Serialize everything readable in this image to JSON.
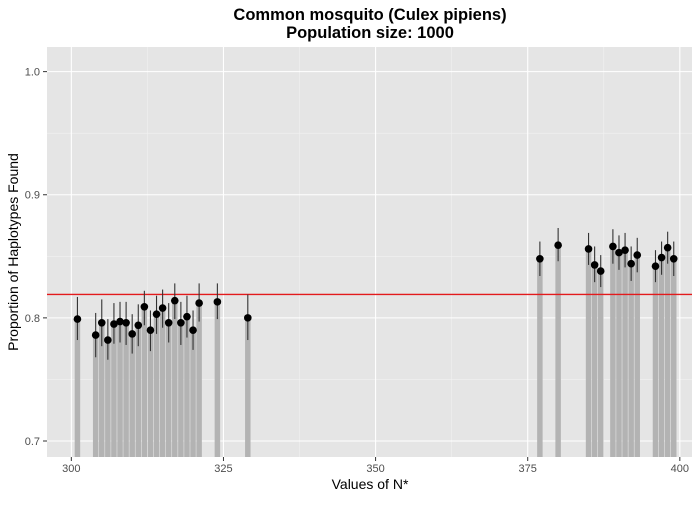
{
  "chart_data": {
    "type": "bar",
    "title": "Common mosquito (Culex pipiens)",
    "subtitle": "Population size: 1000",
    "xlabel": "Values of N*",
    "ylabel": "Proportion of Haplotypes Found",
    "xlim": [
      296,
      402
    ],
    "ylim": [
      0.687,
      1.02
    ],
    "xticks": [
      300,
      325,
      350,
      375,
      400
    ],
    "yticks": [
      0.7,
      0.8,
      0.9,
      1.0
    ],
    "ytick_labels": [
      "0.7",
      "0.8",
      "0.9",
      "1.0"
    ],
    "grid": true,
    "reference_line": {
      "y": 0.819,
      "color": "#e31a1c"
    },
    "colors": {
      "panel": "#e5e5e5",
      "grid_major": "#ffffff",
      "bar": "#b3b3b3",
      "point": "#000000",
      "errorbar": "#333333"
    },
    "points": [
      {
        "x": 301,
        "y": 0.799,
        "lo": 0.782,
        "hi": 0.817
      },
      {
        "x": 304,
        "y": 0.786,
        "lo": 0.768,
        "hi": 0.804
      },
      {
        "x": 305,
        "y": 0.796,
        "lo": 0.777,
        "hi": 0.815
      },
      {
        "x": 306,
        "y": 0.782,
        "lo": 0.766,
        "hi": 0.799
      },
      {
        "x": 307,
        "y": 0.795,
        "lo": 0.779,
        "hi": 0.812
      },
      {
        "x": 308,
        "y": 0.797,
        "lo": 0.78,
        "hi": 0.813
      },
      {
        "x": 309,
        "y": 0.796,
        "lo": 0.778,
        "hi": 0.813
      },
      {
        "x": 310,
        "y": 0.787,
        "lo": 0.771,
        "hi": 0.803
      },
      {
        "x": 311,
        "y": 0.794,
        "lo": 0.777,
        "hi": 0.811
      },
      {
        "x": 312,
        "y": 0.809,
        "lo": 0.794,
        "hi": 0.822
      },
      {
        "x": 313,
        "y": 0.79,
        "lo": 0.773,
        "hi": 0.806
      },
      {
        "x": 314,
        "y": 0.803,
        "lo": 0.787,
        "hi": 0.818
      },
      {
        "x": 315,
        "y": 0.808,
        "lo": 0.792,
        "hi": 0.823
      },
      {
        "x": 316,
        "y": 0.796,
        "lo": 0.78,
        "hi": 0.812
      },
      {
        "x": 317,
        "y": 0.814,
        "lo": 0.799,
        "hi": 0.828
      },
      {
        "x": 318,
        "y": 0.796,
        "lo": 0.778,
        "hi": 0.813
      },
      {
        "x": 319,
        "y": 0.801,
        "lo": 0.784,
        "hi": 0.818
      },
      {
        "x": 320,
        "y": 0.79,
        "lo": 0.774,
        "hi": 0.806
      },
      {
        "x": 321,
        "y": 0.812,
        "lo": 0.797,
        "hi": 0.828
      },
      {
        "x": 324,
        "y": 0.813,
        "lo": 0.799,
        "hi": 0.828
      },
      {
        "x": 329,
        "y": 0.8,
        "lo": 0.782,
        "hi": 0.819
      },
      {
        "x": 377,
        "y": 0.848,
        "lo": 0.834,
        "hi": 0.862
      },
      {
        "x": 380,
        "y": 0.859,
        "lo": 0.846,
        "hi": 0.873
      },
      {
        "x": 385,
        "y": 0.856,
        "lo": 0.843,
        "hi": 0.869
      },
      {
        "x": 386,
        "y": 0.843,
        "lo": 0.829,
        "hi": 0.858
      },
      {
        "x": 387,
        "y": 0.838,
        "lo": 0.825,
        "hi": 0.851
      },
      {
        "x": 389,
        "y": 0.858,
        "lo": 0.844,
        "hi": 0.872
      },
      {
        "x": 390,
        "y": 0.853,
        "lo": 0.839,
        "hi": 0.867
      },
      {
        "x": 391,
        "y": 0.855,
        "lo": 0.841,
        "hi": 0.869
      },
      {
        "x": 392,
        "y": 0.844,
        "lo": 0.83,
        "hi": 0.858
      },
      {
        "x": 393,
        "y": 0.851,
        "lo": 0.837,
        "hi": 0.865
      },
      {
        "x": 396,
        "y": 0.842,
        "lo": 0.829,
        "hi": 0.855
      },
      {
        "x": 397,
        "y": 0.849,
        "lo": 0.835,
        "hi": 0.862
      },
      {
        "x": 398,
        "y": 0.857,
        "lo": 0.844,
        "hi": 0.87
      },
      {
        "x": 399,
        "y": 0.848,
        "lo": 0.834,
        "hi": 0.862
      }
    ]
  }
}
